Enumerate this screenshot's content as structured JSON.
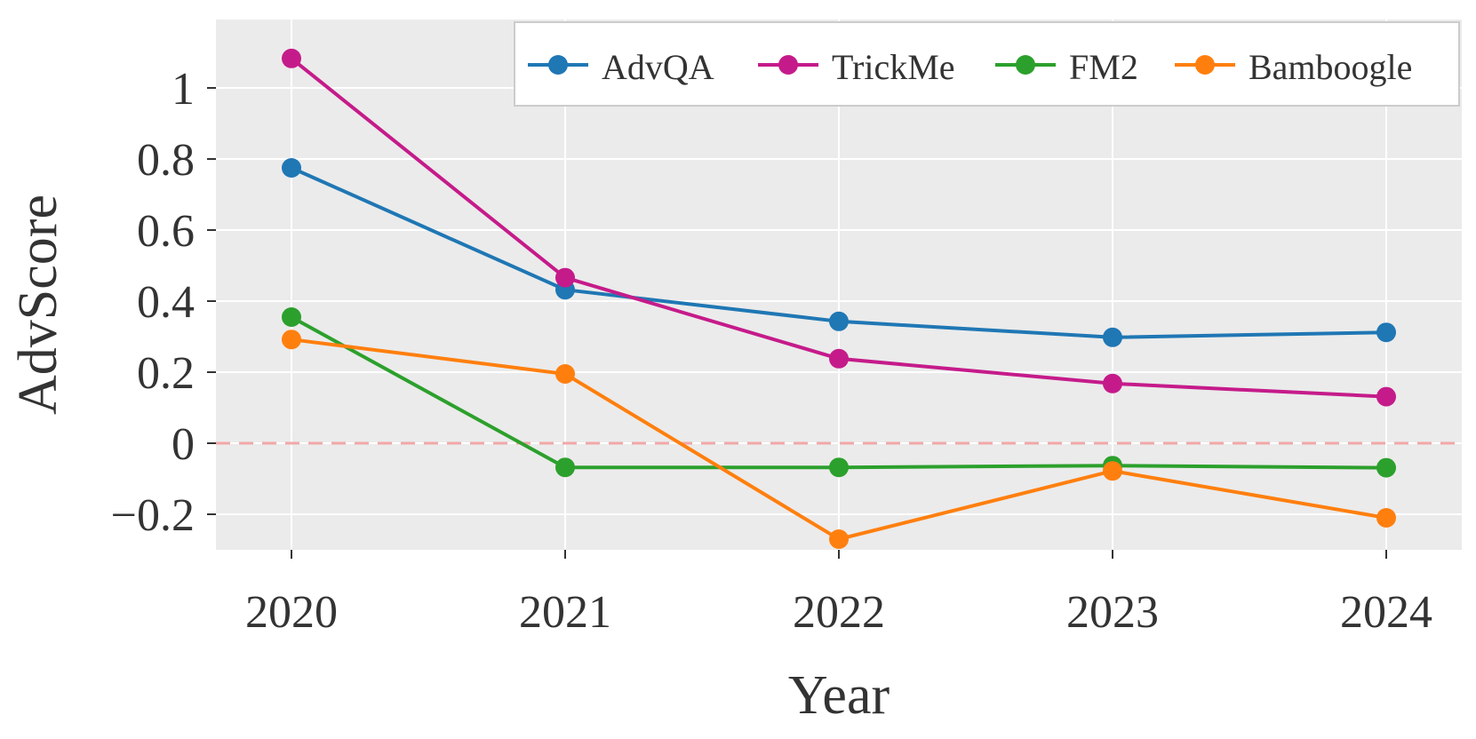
{
  "chart_data": {
    "type": "line",
    "title": "",
    "xlabel": "Year",
    "ylabel": "AdvScore",
    "categories": [
      "2020",
      "2021",
      "2022",
      "2023",
      "2024"
    ],
    "yticks": [
      {
        "value": 1,
        "label": "1"
      },
      {
        "value": 0.8,
        "label": "0.8"
      },
      {
        "value": 0.6,
        "label": "0.6"
      },
      {
        "value": 0.4,
        "label": "0.4"
      },
      {
        "value": 0.2,
        "label": "0.2"
      },
      {
        "value": 0,
        "label": "0"
      },
      {
        "value": -0.2,
        "label": "−0.2"
      }
    ],
    "ylim": [
      -0.3,
      1.19
    ],
    "grid": true,
    "legend_position": "top-right",
    "reference_line": {
      "value": 0,
      "color": "#f2a7a7",
      "style": "dashed"
    },
    "series": [
      {
        "name": "AdvQA",
        "color": "#1f77b4",
        "values": [
          0.775,
          0.432,
          0.343,
          0.298,
          0.312
        ]
      },
      {
        "name": "TrickMe",
        "color": "#c51b8a",
        "values": [
          1.083,
          0.466,
          0.238,
          0.168,
          0.131
        ]
      },
      {
        "name": "FM2",
        "color": "#2ca02c",
        "values": [
          0.355,
          -0.068,
          -0.068,
          -0.063,
          -0.069
        ]
      },
      {
        "name": "Bamboogle",
        "color": "#ff7f0e",
        "values": [
          0.292,
          0.195,
          -0.27,
          -0.078,
          -0.21
        ]
      }
    ]
  },
  "colors": {
    "plot_background": "#ebebeb",
    "grid": "#ffffff",
    "text": "#333333"
  }
}
